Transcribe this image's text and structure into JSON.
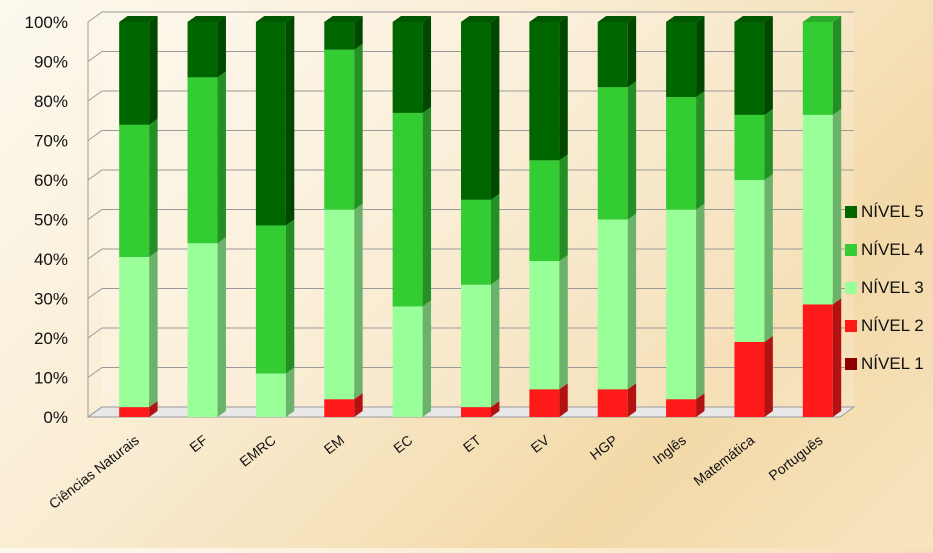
{
  "chart_data": {
    "type": "bar",
    "stacked": true,
    "percent": true,
    "three_d": true,
    "grid": true,
    "legend_position": "right",
    "categories": [
      "Ciências Naturais",
      "EF",
      "EMRC",
      "EM",
      "EC",
      "ET",
      "EV",
      "HGP",
      "Inglês",
      "Matemática",
      "Português"
    ],
    "series": [
      {
        "name": "NÍVEL 1",
        "color": "#8b0000",
        "values": [
          0,
          0,
          0,
          0,
          0,
          0,
          0,
          0,
          0,
          0,
          0
        ]
      },
      {
        "name": "NÍVEL 2",
        "color": "#ff1a1a",
        "values": [
          2.5,
          0,
          0,
          4.5,
          0,
          2.5,
          7,
          7,
          4.5,
          19,
          28.5
        ]
      },
      {
        "name": "NÍVEL 3",
        "color": "#99ff99",
        "values": [
          38,
          44,
          11,
          48,
          28,
          31,
          32.5,
          43,
          48,
          41,
          48
        ]
      },
      {
        "name": "NÍVEL 4",
        "color": "#33cc33",
        "values": [
          33.5,
          42,
          37.5,
          40.5,
          49,
          21.5,
          25.5,
          33.5,
          28.5,
          16.5,
          23.5
        ]
      },
      {
        "name": "NÍVEL 5",
        "color": "#006600",
        "values": [
          26,
          14,
          51.5,
          7,
          23,
          45,
          35,
          16.5,
          19,
          23.5,
          0
        ]
      }
    ],
    "yticks": [
      "0%",
      "10%",
      "20%",
      "30%",
      "40%",
      "50%",
      "60%",
      "70%",
      "80%",
      "90%",
      "100%"
    ],
    "ylim": [
      0,
      100
    ]
  }
}
